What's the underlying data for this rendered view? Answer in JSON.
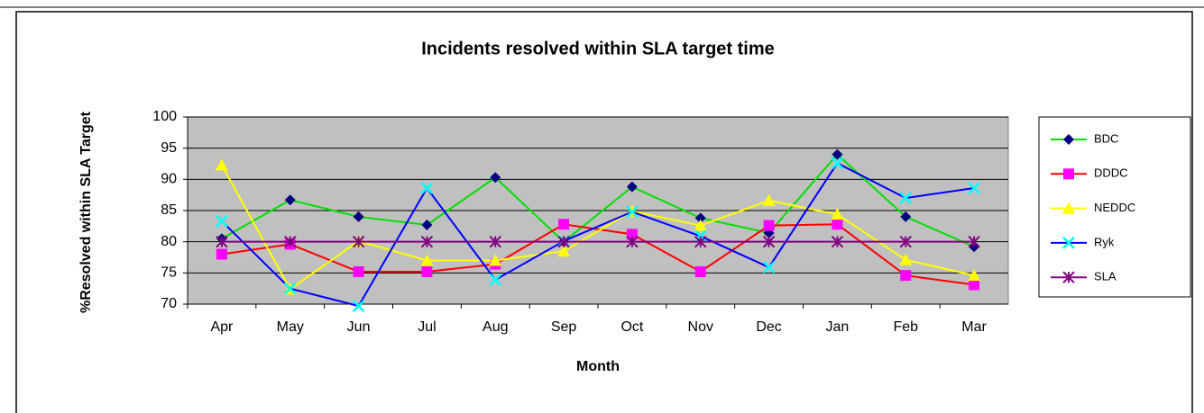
{
  "chart_data": {
    "type": "line",
    "title": "Incidents resolved within SLA  target time",
    "x_label": "Month",
    "y_label": "%Resolved within SLA Target",
    "categories": [
      "Apr",
      "May",
      "Jun",
      "Jul",
      "Aug",
      "Sep",
      "Oct",
      "Nov",
      "Dec",
      "Jan",
      "Feb",
      "Mar"
    ],
    "series": [
      {
        "name": "BDC",
        "color": "#00e000",
        "marker": "diamond",
        "marker_color": "#000080",
        "values": [
          80.5,
          86.7,
          84,
          82.7,
          90.3,
          80,
          88.8,
          83.8,
          81.4,
          94,
          84,
          79.2
        ]
      },
      {
        "name": "DDDC",
        "color": "#ff0000",
        "marker": "square",
        "marker_color": "#ff00ff",
        "values": [
          78,
          79.6,
          75.2,
          75.2,
          76.4,
          82.8,
          81.2,
          75.2,
          82.6,
          82.8,
          74.6,
          73.1
        ]
      },
      {
        "name": "NEDDC",
        "color": "#ffff00",
        "marker": "triangle",
        "marker_color": "#ffff00",
        "values": [
          92.3,
          72.4,
          80.1,
          77,
          77,
          78.5,
          84.9,
          82.6,
          86.6,
          84.4,
          77.1,
          74.6
        ]
      },
      {
        "name": "Ryk",
        "color": "#0000ff",
        "marker": "x",
        "marker_color": "#00ffff",
        "values": [
          83.3,
          72.5,
          69.7,
          88.6,
          73.9,
          80.1,
          84.8,
          80.9,
          75.9,
          92.6,
          87,
          88.6
        ]
      },
      {
        "name": "SLA",
        "color": "#800080",
        "marker": "asterisk",
        "marker_color": "#800080",
        "values": [
          80,
          80,
          80,
          80,
          80,
          80,
          80,
          80,
          80,
          80,
          80,
          80
        ]
      }
    ],
    "ylim": [
      70,
      100
    ],
    "yticks": [
      70,
      75,
      80,
      85,
      90,
      95,
      100
    ],
    "grid": true,
    "legend": "right",
    "plot_background": "#c0c0c0"
  }
}
